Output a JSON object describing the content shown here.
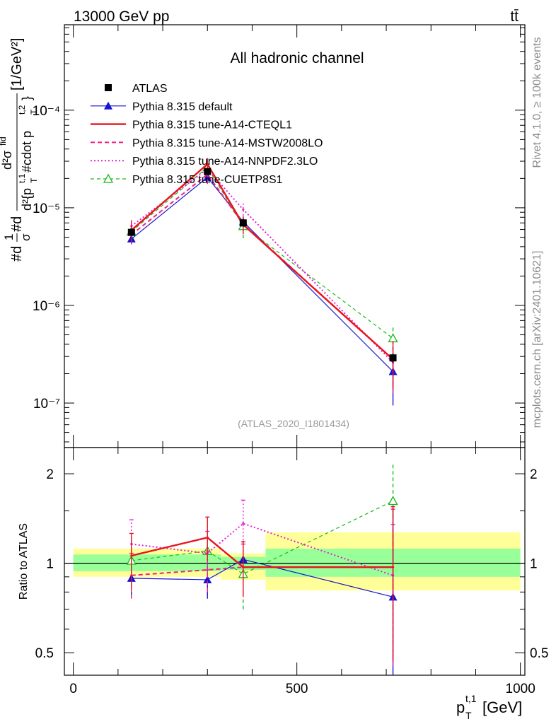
{
  "header": {
    "left": "13000 GeV pp",
    "right": "tt̄"
  },
  "side_labels": {
    "rivet": "Rivet 4.1.0, ≥ 100k events",
    "mcplots": "mcplots.cern.ch [arXiv:2401.10621]"
  },
  "chart_data": [
    {
      "type": "line",
      "title": "All hadronic channel",
      "watermark": "(ATLAS_2020_I1801434)",
      "ylabel": "#d1/σ#d d²σ^{fid} / d²{p_T^{t,1} #cdot p_T^{t,2}} [1/GeV²]",
      "ylabel_parts": {
        "prefix": "#d",
        "frac1_num": "1",
        "frac1_den": "σ",
        "hash_d": "#d",
        "frac2_num": "d²σ",
        "frac2_num_sup": "fid",
        "frac2_den": "d²{p",
        "frac2_den_mid": " #cdot p",
        "frac2_den_end": "}",
        "sub_T": "T",
        "sup1": "t,1",
        "sup2": "t,2",
        "units": "[1/GeV²]"
      },
      "xlabel": "p_T^{t,1} [GeV]",
      "xlabel_parts": {
        "p": "p",
        "sub": "T",
        "sup": "t,1",
        "units": "[GeV]"
      },
      "xlim": [
        -20,
        1010
      ],
      "ylim": [
        3.5e-08,
        0.00075
      ],
      "yscale": "log",
      "y_tick_labels": [
        "10⁻⁷",
        "10⁻⁶",
        "10⁻⁵",
        "10⁻⁴"
      ],
      "legend_position": "top-left",
      "series": [
        {
          "name": "ATLAS",
          "style": "black-square",
          "x": [
            130,
            300,
            380,
            715
          ],
          "y": [
            5.6e-06,
            2.35e-05,
            7e-06,
            2.9e-07
          ],
          "yerr": [
            0.05,
            0.08,
            0.1,
            0.1
          ]
        },
        {
          "name": "Pythia 8.315 default",
          "style": "blue-triangle",
          "x": [
            130,
            300,
            380,
            715
          ],
          "y": [
            4.8e-06,
            2.05e-05,
            7.2e-06,
            2.1e-07
          ],
          "yerr": [
            0.12,
            0.12,
            0.15,
            0.55
          ]
        },
        {
          "name": "Pythia 8.315 tune-A14-CTEQL1",
          "style": "red-solid",
          "x": [
            130,
            300,
            380,
            715
          ],
          "y": [
            5.9e-06,
            2.8e-05,
            6.7e-06,
            2.8e-07
          ],
          "yerr": [
            0.25,
            0.15,
            0.2,
            0.5
          ]
        },
        {
          "name": "Pythia 8.315 tune-A14-MSTW2008LO",
          "style": "magenta-dashed",
          "x": [
            130,
            300,
            380,
            715
          ],
          "y": [
            5.3e-06,
            2.2e-05,
            6.8e-06,
            2.8e-07
          ],
          "yerr": [
            0.2,
            0.2,
            0.2,
            0.55
          ]
        },
        {
          "name": "Pythia 8.315 tune-A14-NNPDF2.3LO",
          "style": "magenta-dotted",
          "x": [
            130,
            300,
            380,
            715
          ],
          "y": [
            6.5e-06,
            2.5e-05,
            9.6e-06,
            2.6e-07
          ],
          "yerr": [
            0.2,
            0.15,
            0.2,
            0.45
          ]
        },
        {
          "name": "Pythia 8.315 tune-CUETP8S1",
          "style": "green-open-triangle",
          "x": [
            130,
            300,
            380,
            715
          ],
          "y": [
            5.7e-06,
            2.6e-05,
            6.5e-06,
            4.6e-07
          ],
          "yerr": [
            0.2,
            0.15,
            0.25,
            0.35
          ]
        }
      ]
    },
    {
      "type": "line",
      "ylabel": "Ratio to ATLAS",
      "xlim": [
        -20,
        1010
      ],
      "ylim": [
        0.42,
        2.45
      ],
      "yscale": "log",
      "x_ticks": [
        0,
        500,
        1000
      ],
      "x_tick_labels": [
        "0",
        "500",
        "1000"
      ],
      "y_ticks": [
        0.5,
        1,
        2
      ],
      "y_tick_labels": [
        "0.5",
        "1",
        "2"
      ],
      "bands": {
        "edges": [
          0,
          330,
          430,
          1000
        ],
        "inner": [
          [
            0.94,
            1.07
          ],
          [
            0.95,
            1.05
          ],
          [
            0.9,
            1.12
          ],
          [
            0.9,
            1.12
          ]
        ],
        "outer": [
          [
            0.9,
            1.12
          ],
          [
            0.88,
            1.08
          ],
          [
            0.81,
            1.27
          ],
          [
            0.81,
            1.27
          ]
        ]
      },
      "series": [
        {
          "name": "Pythia 8.315 default",
          "style": "blue-triangle",
          "x": [
            130,
            300,
            380,
            715
          ],
          "y": [
            0.89,
            0.88,
            1.03,
            0.77
          ],
          "err": [
            [
              0.77,
              1.18
            ],
            [
              0.76,
              1.02
            ],
            [
              0.9,
              1.19
            ],
            [
              0.35,
              1.55
            ]
          ]
        },
        {
          "name": "Pythia 8.315 tune-A14-CTEQL1",
          "style": "red-solid",
          "x": [
            130,
            300,
            380,
            715
          ],
          "y": [
            1.06,
            1.22,
            0.97,
            0.97
          ],
          "err": [
            [
              0.82,
              1.26
            ],
            [
              1.02,
              1.43
            ],
            [
              0.77,
              1.18
            ],
            [
              0.47,
              1.55
            ]
          ]
        },
        {
          "name": "Pythia 8.315 tune-A14-MSTW2008LO",
          "style": "magenta-dashed",
          "x": [
            130,
            300,
            380,
            715
          ],
          "y": [
            0.91,
            0.95,
            0.97,
            0.97
          ],
          "err": [
            [
              0.76,
              1.08
            ],
            [
              0.8,
              1.1
            ],
            [
              0.78,
              1.16
            ],
            [
              0.45,
              1.52
            ]
          ]
        },
        {
          "name": "Pythia 8.315 tune-A14-NNPDF2.3LO",
          "style": "magenta-dotted",
          "x": [
            130,
            300,
            380,
            715
          ],
          "y": [
            1.16,
            1.08,
            1.36,
            0.91
          ],
          "err": [
            [
              0.95,
              1.4
            ],
            [
              0.9,
              1.28
            ],
            [
              1.1,
              1.63
            ],
            [
              0.45,
              1.35
            ]
          ]
        },
        {
          "name": "Pythia 8.315 tune-CUETP8S1",
          "style": "green-open-triangle",
          "x": [
            130,
            300,
            380,
            715
          ],
          "y": [
            1.02,
            1.1,
            0.92,
            1.62
          ],
          "err": [
            [
              0.8,
              1.25
            ],
            [
              0.92,
              1.3
            ],
            [
              0.7,
              1.12
            ],
            [
              1.1,
              2.18
            ]
          ]
        }
      ]
    }
  ]
}
